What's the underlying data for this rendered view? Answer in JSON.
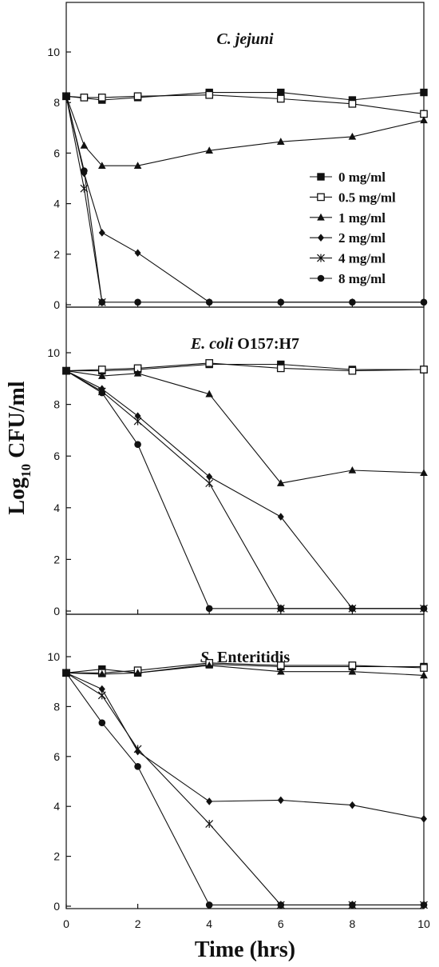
{
  "chart_data": {
    "type": "line",
    "ylabel": "Log10 CFU/ml",
    "ylabel_main": "Log",
    "ylabel_sub": "10",
    "ylabel_rest": " CFU/ml",
    "xlabel": "Time (hrs)",
    "xlim": [
      0,
      10
    ],
    "ylim": [
      0,
      11.2
    ],
    "x_ticks": [
      "0",
      "2",
      "4",
      "6",
      "8",
      "10"
    ],
    "y_ticks": [
      "0",
      "2",
      "4",
      "6",
      "8",
      "10"
    ],
    "legend_position": "right, in top panel",
    "grid": false,
    "legend": [
      {
        "name": "0 mg/ml",
        "marker": "square-filled"
      },
      {
        "name": "0.5 mg/ml",
        "marker": "square-open"
      },
      {
        "name": "1 mg/ml",
        "marker": "triangle"
      },
      {
        "name": "2 mg/ml",
        "marker": "diamond"
      },
      {
        "name": "4 mg/ml",
        "marker": "star"
      },
      {
        "name": "8 mg/ml",
        "marker": "circle"
      }
    ],
    "panels": [
      {
        "title_italic": "C. jejuni",
        "title_rest": "",
        "series": [
          {
            "name": "0 mg/ml",
            "marker": "square-filled",
            "x": [
              0,
              1,
              2,
              4,
              6,
              8,
              10
            ],
            "y": [
              8.25,
              8.1,
              8.2,
              8.4,
              8.4,
              8.1,
              8.4
            ]
          },
          {
            "name": "0.5 mg/ml",
            "marker": "square-open",
            "x": [
              0,
              0.5,
              1,
              2,
              4,
              6,
              8,
              10
            ],
            "y": [
              8.25,
              8.2,
              8.2,
              8.25,
              8.3,
              8.15,
              7.95,
              7.55
            ]
          },
          {
            "name": "1 mg/ml",
            "marker": "triangle",
            "x": [
              0,
              0.5,
              1,
              2,
              4,
              6,
              8,
              10
            ],
            "y": [
              8.25,
              6.3,
              5.5,
              5.5,
              6.1,
              6.45,
              6.65,
              7.3
            ]
          },
          {
            "name": "2 mg/ml",
            "marker": "diamond",
            "x": [
              0,
              0.5,
              1,
              2,
              4,
              6,
              8,
              10
            ],
            "y": [
              8.25,
              5.2,
              2.85,
              2.05,
              0.1,
              0.1,
              0.1,
              0.1
            ]
          },
          {
            "name": "4 mg/ml",
            "marker": "star",
            "x": [
              0,
              0.5,
              1
            ],
            "y": [
              8.25,
              4.6,
              0.1
            ]
          },
          {
            "name": "8 mg/ml",
            "marker": "circle",
            "x": [
              0,
              0.5,
              1,
              2,
              4,
              6,
              8,
              10
            ],
            "y": [
              8.25,
              5.3,
              0.1,
              0.1,
              0.1,
              0.1,
              0.1,
              0.1
            ]
          }
        ]
      },
      {
        "title_italic": "E. coli",
        "title_rest": " O157:H7",
        "series": [
          {
            "name": "0 mg/ml",
            "marker": "square-filled",
            "x": [
              0,
              1,
              2,
              4,
              6,
              8,
              10
            ],
            "y": [
              9.3,
              9.3,
              9.35,
              9.55,
              9.55,
              9.35,
              9.35
            ]
          },
          {
            "name": "0.5 mg/ml",
            "marker": "square-open",
            "x": [
              0,
              1,
              2,
              4,
              6,
              8,
              10
            ],
            "y": [
              9.3,
              9.35,
              9.4,
              9.6,
              9.4,
              9.3,
              9.35
            ]
          },
          {
            "name": "1 mg/ml",
            "marker": "triangle",
            "x": [
              0,
              1,
              2,
              4,
              6,
              8,
              10
            ],
            "y": [
              9.3,
              9.1,
              9.2,
              8.4,
              4.95,
              5.45,
              5.35
            ]
          },
          {
            "name": "2 mg/ml",
            "marker": "diamond",
            "x": [
              0,
              1,
              2,
              4,
              6,
              8,
              10
            ],
            "y": [
              9.3,
              8.6,
              7.55,
              5.2,
              3.65,
              0.1,
              0.1
            ]
          },
          {
            "name": "4 mg/ml",
            "marker": "star",
            "x": [
              0,
              1,
              2,
              4,
              6,
              8,
              10
            ],
            "y": [
              9.3,
              8.5,
              7.35,
              4.95,
              0.1,
              0.1,
              0.1
            ]
          },
          {
            "name": "8 mg/ml",
            "marker": "circle",
            "x": [
              0,
              1,
              2,
              4,
              6,
              8,
              10
            ],
            "y": [
              9.3,
              8.45,
              6.45,
              0.1,
              0.1,
              0.1,
              0.1
            ]
          }
        ]
      },
      {
        "title_italic": "S.",
        "title_rest": " Enteritidis",
        "series": [
          {
            "name": "0 mg/ml",
            "marker": "square-filled",
            "x": [
              0,
              1,
              2,
              4,
              6,
              8,
              10
            ],
            "y": [
              9.35,
              9.5,
              9.35,
              9.7,
              9.6,
              9.6,
              9.6
            ]
          },
          {
            "name": "0.5 mg/ml",
            "marker": "square-open",
            "x": [
              0,
              1,
              2,
              4,
              6,
              8,
              10
            ],
            "y": [
              9.35,
              9.35,
              9.45,
              9.75,
              9.65,
              9.65,
              9.55
            ]
          },
          {
            "name": "1 mg/ml",
            "marker": "triangle",
            "x": [
              0,
              1,
              2,
              4,
              6,
              8,
              10
            ],
            "y": [
              9.35,
              9.3,
              9.35,
              9.65,
              9.4,
              9.4,
              9.25
            ]
          },
          {
            "name": "2 mg/ml",
            "marker": "diamond",
            "x": [
              0,
              1,
              2,
              4,
              6,
              8,
              10
            ],
            "y": [
              9.35,
              8.7,
              6.2,
              4.2,
              4.25,
              4.05,
              3.5
            ]
          },
          {
            "name": "4 mg/ml",
            "marker": "star",
            "x": [
              0,
              1,
              2,
              4,
              6,
              8,
              10
            ],
            "y": [
              9.35,
              8.45,
              6.3,
              3.3,
              0.05,
              0.05,
              0.05
            ]
          },
          {
            "name": "8 mg/ml",
            "marker": "circle",
            "x": [
              0,
              1,
              2,
              4,
              6,
              8,
              10
            ],
            "y": [
              9.35,
              7.35,
              5.6,
              0.05,
              0.05,
              0.05,
              0.05
            ]
          }
        ]
      }
    ]
  }
}
